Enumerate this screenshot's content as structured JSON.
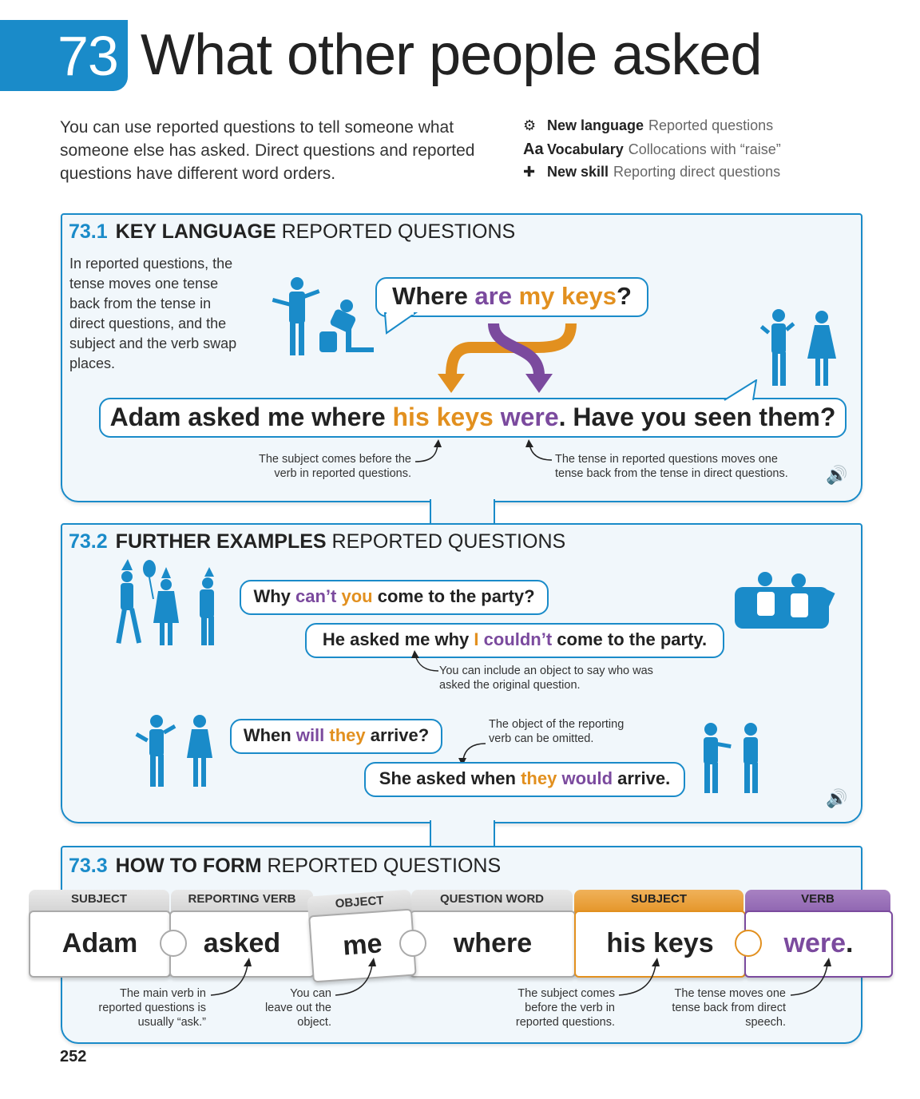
{
  "header": {
    "unit_number": "73",
    "title": "What other people asked",
    "intro": "You can use reported questions to tell someone what someone else has asked. Direct questions and reported questions have different word orders.",
    "info": [
      {
        "icon": "gears-icon",
        "label": "New language",
        "value": "Reported questions"
      },
      {
        "icon": "aa-icon",
        "label": "Vocabulary",
        "value": "Collocations with “raise”"
      },
      {
        "icon": "puzzle-icon",
        "label": "New skill",
        "value": "Reporting direct questions"
      }
    ]
  },
  "s1": {
    "num": "73.1",
    "kw": "KEY LANGUAGE",
    "rest": "REPORTED QUESTIONS",
    "text": "In reported questions, the tense moves one tense back from the tense in direct questions, and the subject and the verb swap places.",
    "q": [
      "Where ",
      "are",
      " ",
      "my keys",
      "?"
    ],
    "a": [
      "Adam asked me where ",
      "his keys",
      " ",
      "were",
      ". Have you seen them?"
    ],
    "note1": "The subject comes before the verb in reported questions.",
    "note2": "The tense in reported questions moves one tense back from the tense in direct questions."
  },
  "s2": {
    "num": "73.2",
    "kw": "FURTHER EXAMPLES",
    "rest": "REPORTED QUESTIONS",
    "q1": [
      "Why ",
      "can’t",
      " ",
      "you",
      " come to the party?"
    ],
    "a1": [
      "He asked me why ",
      "I",
      " ",
      "couldn’t",
      " come to the party."
    ],
    "note1": "You can include an object to say who was asked the original question.",
    "q2": [
      "When ",
      "will",
      " ",
      "they",
      " arrive?"
    ],
    "a2": [
      "She asked when ",
      "they",
      " ",
      "would",
      " arrive."
    ],
    "note2": "The object of the reporting verb can be omitted."
  },
  "s3": {
    "num": "73.3",
    "kw": "HOW TO FORM",
    "rest": "REPORTED QUESTIONS",
    "pieces": [
      {
        "label": "SUBJECT",
        "word": "Adam"
      },
      {
        "label": "REPORTING VERB",
        "word": "asked"
      },
      {
        "label": "OBJECT",
        "word": "me"
      },
      {
        "label": "QUESTION WORD",
        "word": "where"
      },
      {
        "label": "SUBJECT",
        "word": "his keys"
      },
      {
        "label": "VERB",
        "word": "were",
        "punct": "."
      }
    ],
    "notes": [
      "The main verb in reported questions is usually “ask.”",
      "You can leave out the object.",
      "The subject comes before the verb in reported questions.",
      "The tense moves one tense back from direct speech."
    ]
  },
  "colors": {
    "blue": "#1a8bc9",
    "orange": "#e2901f",
    "purple": "#7b4a9e"
  },
  "page_number": "252"
}
